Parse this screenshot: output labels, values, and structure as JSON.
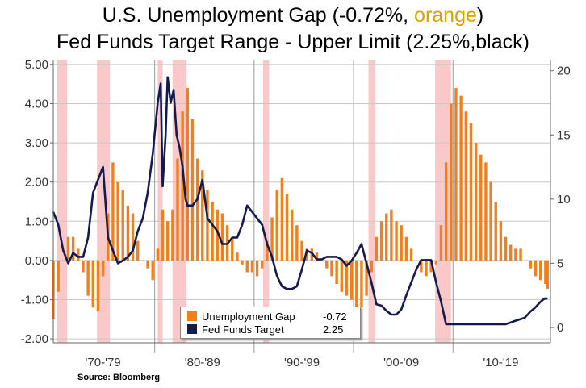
{
  "title": {
    "line1_pre": "U.S. Unemployment Gap (-0.72%, ",
    "line1_orange": "orange",
    "line1_post": ")",
    "line2": "Fed Funds Target Range - Upper Limit (2.25%,black)"
  },
  "source": "Source: Bloomberg",
  "legend": [
    {
      "name": "Unemployment Gap",
      "value": "-0.72",
      "color": "#f07f1d"
    },
    {
      "name": "Fed Funds Target",
      "value": "2.25",
      "color": "#141a4d"
    }
  ],
  "chart_data": {
    "type": "bar",
    "x_range": [
      1969.5,
      2019.5
    ],
    "y_left": {
      "range": [
        -2.1,
        5.1
      ],
      "ticks": [
        "5.00",
        "4.00",
        "3.00",
        "2.00",
        "1.00",
        "0.00",
        "-1.00",
        "-2.00"
      ],
      "tick_values": [
        5,
        4,
        3,
        2,
        1,
        0,
        -1,
        -2
      ]
    },
    "y_right": {
      "range": [
        -1.2,
        20.8
      ],
      "ticks": [
        "20",
        "15",
        "10",
        "5",
        "0"
      ],
      "tick_values": [
        20,
        15,
        10,
        5,
        0
      ]
    },
    "x_ticks": [
      {
        "label": "'70-'79",
        "center": 1974.5
      },
      {
        "label": "'80-'89",
        "center": 1984.5
      },
      {
        "label": "'90-'99",
        "center": 1994.5
      },
      {
        "label": "'00-'09",
        "center": 2004.5
      },
      {
        "label": "'10-'19",
        "center": 2014.5
      }
    ],
    "decade_boundaries": [
      1979.7,
      1989.7,
      1999.7,
      2009.7
    ],
    "recessions": [
      [
        1969.9,
        1970.9
      ],
      [
        1973.9,
        1975.2
      ],
      [
        1980.0,
        1980.5
      ],
      [
        1981.5,
        1982.9
      ],
      [
        1990.6,
        1991.2
      ],
      [
        2001.2,
        2001.9
      ],
      [
        2007.9,
        2009.5
      ]
    ],
    "colors": {
      "bars": "#f07f1d",
      "line": "#141a4d",
      "recession": "#f9c8c8",
      "grid": "#c8c8c8"
    },
    "unemployment_gap": {
      "name": "Unemployment Gap",
      "unit": "% (left axis)",
      "points": [
        [
          1969.5,
          -1.5
        ],
        [
          1970.0,
          -0.8
        ],
        [
          1970.5,
          0.0
        ],
        [
          1971.0,
          0.6
        ],
        [
          1971.5,
          0.6
        ],
        [
          1972.0,
          0.3
        ],
        [
          1972.5,
          -0.3
        ],
        [
          1973.0,
          -0.9
        ],
        [
          1973.5,
          -1.2
        ],
        [
          1974.0,
          -1.3
        ],
        [
          1974.5,
          -0.4
        ],
        [
          1975.0,
          1.2
        ],
        [
          1975.5,
          2.5
        ],
        [
          1976.0,
          2.0
        ],
        [
          1976.5,
          1.8
        ],
        [
          1977.0,
          1.4
        ],
        [
          1977.5,
          1.2
        ],
        [
          1978.0,
          0.5
        ],
        [
          1978.5,
          0.0
        ],
        [
          1979.0,
          -0.2
        ],
        [
          1979.5,
          -0.5
        ],
        [
          1980.0,
          0.3
        ],
        [
          1980.5,
          1.3
        ],
        [
          1981.0,
          1.0
        ],
        [
          1981.5,
          1.3
        ],
        [
          1982.0,
          2.6
        ],
        [
          1982.5,
          3.8
        ],
        [
          1983.0,
          4.4
        ],
        [
          1983.5,
          3.6
        ],
        [
          1984.0,
          2.6
        ],
        [
          1984.5,
          2.3
        ],
        [
          1985.0,
          1.8
        ],
        [
          1985.5,
          1.5
        ],
        [
          1986.0,
          1.3
        ],
        [
          1986.5,
          1.2
        ],
        [
          1987.0,
          0.9
        ],
        [
          1987.5,
          0.6
        ],
        [
          1988.0,
          0.2
        ],
        [
          1988.5,
          -0.1
        ],
        [
          1989.0,
          -0.3
        ],
        [
          1989.5,
          -0.3
        ],
        [
          1990.0,
          -0.4
        ],
        [
          1990.5,
          -0.2
        ],
        [
          1991.0,
          0.5
        ],
        [
          1991.5,
          1.1
        ],
        [
          1992.0,
          1.8
        ],
        [
          1992.5,
          2.1
        ],
        [
          1993.0,
          1.7
        ],
        [
          1993.5,
          1.3
        ],
        [
          1994.0,
          0.9
        ],
        [
          1994.5,
          0.5
        ],
        [
          1995.0,
          0.3
        ],
        [
          1995.5,
          0.3
        ],
        [
          1996.0,
          0.2
        ],
        [
          1996.5,
          0.0
        ],
        [
          1997.0,
          -0.2
        ],
        [
          1997.5,
          -0.4
        ],
        [
          1998.0,
          -0.6
        ],
        [
          1998.5,
          -0.8
        ],
        [
          1999.0,
          -0.9
        ],
        [
          1999.5,
          -1.0
        ],
        [
          2000.0,
          -1.2
        ],
        [
          2000.5,
          -1.2
        ],
        [
          2001.0,
          -0.9
        ],
        [
          2001.5,
          -0.3
        ],
        [
          2002.0,
          0.6
        ],
        [
          2002.5,
          1.0
        ],
        [
          2003.0,
          1.2
        ],
        [
          2003.5,
          1.3
        ],
        [
          2004.0,
          1.0
        ],
        [
          2004.5,
          0.9
        ],
        [
          2005.0,
          0.6
        ],
        [
          2005.5,
          0.3
        ],
        [
          2006.0,
          0.0
        ],
        [
          2006.5,
          -0.3
        ],
        [
          2007.0,
          -0.4
        ],
        [
          2007.5,
          -0.3
        ],
        [
          2008.0,
          -0.1
        ],
        [
          2008.5,
          0.9
        ],
        [
          2009.0,
          2.5
        ],
        [
          2009.5,
          4.0
        ],
        [
          2010.0,
          4.4
        ],
        [
          2010.5,
          4.2
        ],
        [
          2011.0,
          3.8
        ],
        [
          2011.5,
          3.5
        ],
        [
          2012.0,
          3.0
        ],
        [
          2012.5,
          2.7
        ],
        [
          2013.0,
          2.5
        ],
        [
          2013.5,
          2.0
        ],
        [
          2014.0,
          1.5
        ],
        [
          2014.5,
          1.0
        ],
        [
          2015.0,
          0.6
        ],
        [
          2015.5,
          0.4
        ],
        [
          2016.0,
          0.3
        ],
        [
          2016.5,
          0.3
        ],
        [
          2017.0,
          0.0
        ],
        [
          2017.5,
          -0.2
        ],
        [
          2018.0,
          -0.4
        ],
        [
          2018.5,
          -0.5
        ],
        [
          2019.0,
          -0.6
        ],
        [
          2019.2,
          -0.72
        ]
      ]
    },
    "fed_funds_target": {
      "name": "Fed Funds Target",
      "unit": "% (right axis)",
      "points": [
        [
          1969.5,
          9.0
        ],
        [
          1970.0,
          8.0
        ],
        [
          1970.5,
          6.0
        ],
        [
          1971.0,
          5.0
        ],
        [
          1971.5,
          5.8
        ],
        [
          1972.0,
          5.5
        ],
        [
          1972.5,
          5.5
        ],
        [
          1973.0,
          7.0
        ],
        [
          1973.5,
          10.5
        ],
        [
          1974.0,
          11.5
        ],
        [
          1974.5,
          12.5
        ],
        [
          1975.0,
          7.0
        ],
        [
          1975.5,
          6.0
        ],
        [
          1976.0,
          5.0
        ],
        [
          1976.5,
          5.2
        ],
        [
          1977.0,
          5.5
        ],
        [
          1977.5,
          6.0
        ],
        [
          1978.0,
          7.5
        ],
        [
          1978.5,
          8.5
        ],
        [
          1979.0,
          10.5
        ],
        [
          1979.5,
          13.5
        ],
        [
          1980.0,
          17.5
        ],
        [
          1980.3,
          19.0
        ],
        [
          1980.5,
          11.0
        ],
        [
          1980.8,
          15.0
        ],
        [
          1981.0,
          19.5
        ],
        [
          1981.3,
          17.5
        ],
        [
          1981.6,
          18.5
        ],
        [
          1981.9,
          15.0
        ],
        [
          1982.2,
          14.0
        ],
        [
          1982.5,
          12.5
        ],
        [
          1982.8,
          10.0
        ],
        [
          1983.0,
          9.5
        ],
        [
          1983.5,
          9.5
        ],
        [
          1984.0,
          10.0
        ],
        [
          1984.5,
          11.5
        ],
        [
          1985.0,
          8.5
        ],
        [
          1985.5,
          8.0
        ],
        [
          1986.0,
          7.5
        ],
        [
          1986.5,
          6.5
        ],
        [
          1987.0,
          6.5
        ],
        [
          1987.5,
          7.0
        ],
        [
          1988.0,
          7.0
        ],
        [
          1988.5,
          8.0
        ],
        [
          1989.0,
          9.5
        ],
        [
          1989.5,
          9.0
        ],
        [
          1990.0,
          8.5
        ],
        [
          1990.5,
          8.0
        ],
        [
          1991.0,
          6.5
        ],
        [
          1991.5,
          5.5
        ],
        [
          1992.0,
          4.0
        ],
        [
          1992.5,
          3.2
        ],
        [
          1993.0,
          3.0
        ],
        [
          1993.5,
          3.0
        ],
        [
          1994.0,
          3.2
        ],
        [
          1994.5,
          4.5
        ],
        [
          1995.0,
          6.0
        ],
        [
          1995.5,
          5.8
        ],
        [
          1996.0,
          5.3
        ],
        [
          1996.5,
          5.3
        ],
        [
          1997.0,
          5.5
        ],
        [
          1997.5,
          5.5
        ],
        [
          1998.0,
          5.5
        ],
        [
          1998.5,
          5.3
        ],
        [
          1999.0,
          4.8
        ],
        [
          1999.5,
          5.2
        ],
        [
          2000.0,
          5.8
        ],
        [
          2000.5,
          6.5
        ],
        [
          2001.0,
          5.0
        ],
        [
          2001.5,
          3.5
        ],
        [
          2002.0,
          1.8
        ],
        [
          2002.5,
          1.7
        ],
        [
          2003.0,
          1.3
        ],
        [
          2003.5,
          1.0
        ],
        [
          2004.0,
          1.0
        ],
        [
          2004.5,
          1.4
        ],
        [
          2005.0,
          2.5
        ],
        [
          2005.5,
          3.5
        ],
        [
          2006.0,
          4.5
        ],
        [
          2006.5,
          5.25
        ],
        [
          2007.0,
          5.25
        ],
        [
          2007.5,
          5.25
        ],
        [
          2008.0,
          3.5
        ],
        [
          2008.5,
          2.0
        ],
        [
          2009.0,
          0.25
        ],
        [
          2010.0,
          0.25
        ],
        [
          2011.0,
          0.25
        ],
        [
          2012.0,
          0.25
        ],
        [
          2013.0,
          0.25
        ],
        [
          2014.0,
          0.25
        ],
        [
          2015.0,
          0.25
        ],
        [
          2015.9,
          0.5
        ],
        [
          2016.9,
          0.75
        ],
        [
          2017.2,
          1.0
        ],
        [
          2017.5,
          1.25
        ],
        [
          2017.9,
          1.5
        ],
        [
          2018.2,
          1.75
        ],
        [
          2018.5,
          2.0
        ],
        [
          2018.9,
          2.25
        ],
        [
          2019.2,
          2.25
        ]
      ]
    }
  }
}
